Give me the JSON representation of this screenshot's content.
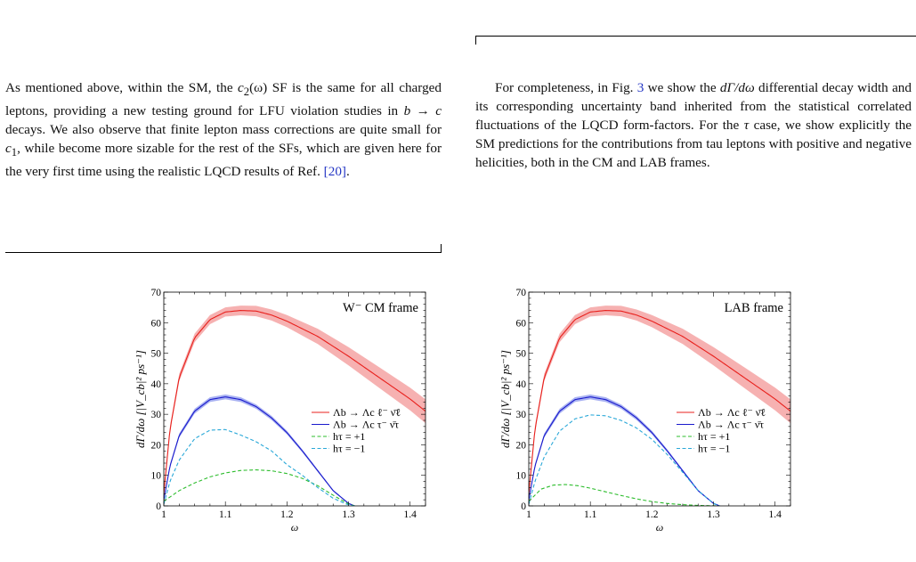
{
  "left_column": {
    "paragraph_parts": [
      "As mentioned above, within the SM, the ",
      "c",
      "2",
      "(ω) SF is the same for all charged leptons, providing a new testing ground for LFU violation studies in ",
      "b → c",
      " decays. We also observe that finite lepton mass corrections are quite small for ",
      "c",
      "1",
      ", while become more sizable for the rest of the SFs, which are given here for the very first time using the realistic LQCD results of Ref. ",
      "[20]",
      "."
    ]
  },
  "right_column": {
    "paragraph_parts": [
      "For completeness, in Fig. ",
      "3",
      " we show the ",
      "dΓ/dω",
      " differential decay width and its corresponding uncertainty band inherited from the statistical correlated fluctuations of the LQCD form-factors. For the ",
      "τ",
      " case, we show explicitly the SM predictions for the contributions from tau leptons with positive and negative helicities, both in the CM and LAB frames."
    ]
  },
  "colors": {
    "electron": "#e8201c",
    "electron_band": "#f5a3a3",
    "tau": "#1a1acc",
    "tau_band": "#9aa4f0",
    "h_plus": "#2ebd2e",
    "h_minus": "#2aa8d8",
    "link": "#2436c4"
  },
  "chart_data": [
    {
      "type": "line",
      "title": "",
      "frame_label": "W⁻ CM frame",
      "xlabel": "ω",
      "ylabel": "dΓ/dω [|V_cb|² ps⁻¹]",
      "xlim": [
        1.0,
        1.425
      ],
      "ylim": [
        0,
        70
      ],
      "xticks": [
        "1",
        "1.1",
        "1.2",
        "1.3",
        "1.4"
      ],
      "yticks": [
        "0",
        "10",
        "20",
        "30",
        "40",
        "50",
        "60",
        "70"
      ],
      "legend": [
        "Λb → Λc ℓ⁻ ν̄ℓ",
        "Λb → Λc τ⁻ ν̄τ",
        "hτ = +1",
        "hτ = −1"
      ],
      "legend_position": "center-right",
      "series": [
        {
          "name": "Λb → Λc ℓ⁻ ν̄ℓ",
          "style": "solid",
          "band": true,
          "x": [
            1.0,
            1.01,
            1.025,
            1.05,
            1.075,
            1.1,
            1.125,
            1.15,
            1.175,
            1.2,
            1.25,
            1.3,
            1.35,
            1.4,
            1.425
          ],
          "y": [
            4,
            25,
            42,
            55,
            61,
            63.5,
            64,
            63.8,
            62.5,
            60.5,
            55.5,
            49,
            42,
            35,
            31
          ],
          "band_halfwidth": [
            0.5,
            1,
            1.2,
            1.4,
            1.5,
            1.5,
            1.6,
            1.7,
            1.8,
            2,
            2.5,
            3,
            3.4,
            3.7,
            3.9
          ]
        },
        {
          "name": "Λb → Λc τ⁻ ν̄τ",
          "style": "solid",
          "band": true,
          "x": [
            1.0,
            1.01,
            1.025,
            1.05,
            1.075,
            1.1,
            1.125,
            1.15,
            1.175,
            1.2,
            1.225,
            1.25,
            1.275,
            1.3,
            1.31
          ],
          "y": [
            2,
            13,
            23,
            31,
            34.8,
            35.7,
            34.8,
            32.5,
            28.8,
            24,
            18,
            11.5,
            5,
            0.8,
            0
          ],
          "band_halfwidth": [
            0.3,
            0.6,
            0.7,
            0.8,
            0.8,
            0.8,
            0.8,
            0.7,
            0.7,
            0.6,
            0.5,
            0.4,
            0.3,
            0.2,
            0.1
          ]
        },
        {
          "name": "hτ = +1",
          "style": "dashed",
          "x": [
            1.0,
            1.025,
            1.05,
            1.075,
            1.1,
            1.125,
            1.15,
            1.175,
            1.2,
            1.225,
            1.25,
            1.275,
            1.3,
            1.31
          ],
          "y": [
            1.5,
            5,
            7.5,
            9.5,
            10.8,
            11.6,
            11.8,
            11.5,
            10.6,
            9,
            6.6,
            3.5,
            0.6,
            0
          ]
        },
        {
          "name": "hτ = −1",
          "style": "dashed",
          "x": [
            1.0,
            1.01,
            1.025,
            1.05,
            1.075,
            1.1,
            1.125,
            1.15,
            1.175,
            1.2,
            1.225,
            1.25,
            1.275,
            1.3,
            1.31
          ],
          "y": [
            0.5,
            8,
            15,
            22,
            24.8,
            25,
            23.2,
            21,
            18,
            13.5,
            10,
            6,
            2.5,
            0.3,
            0
          ]
        }
      ]
    },
    {
      "type": "line",
      "title": "",
      "frame_label": "LAB frame",
      "xlabel": "ω",
      "ylabel": "dΓ/dω [|V_cb|² ps⁻¹]",
      "xlim": [
        1.0,
        1.425
      ],
      "ylim": [
        0,
        70
      ],
      "xticks": [
        "1",
        "1.1",
        "1.2",
        "1.3",
        "1.4"
      ],
      "yticks": [
        "0",
        "10",
        "20",
        "30",
        "40",
        "50",
        "60",
        "70"
      ],
      "legend": [
        "Λb → Λc ℓ⁻ ν̄ℓ",
        "Λb → Λc τ⁻ ν̄τ",
        "hτ = +1",
        "hτ = −1"
      ],
      "legend_position": "center-right",
      "series": [
        {
          "name": "Λb → Λc ℓ⁻ ν̄ℓ",
          "style": "solid",
          "band": true,
          "x": [
            1.0,
            1.01,
            1.025,
            1.05,
            1.075,
            1.1,
            1.125,
            1.15,
            1.175,
            1.2,
            1.25,
            1.3,
            1.35,
            1.4,
            1.425
          ],
          "y": [
            4,
            25,
            42,
            55,
            61,
            63.5,
            64,
            63.8,
            62.5,
            60.5,
            55.5,
            49,
            42,
            35,
            31
          ],
          "band_halfwidth": [
            0.5,
            1,
            1.2,
            1.4,
            1.5,
            1.5,
            1.6,
            1.7,
            1.8,
            2,
            2.5,
            3,
            3.4,
            3.7,
            3.9
          ]
        },
        {
          "name": "Λb → Λc τ⁻ ν̄τ",
          "style": "solid",
          "band": true,
          "x": [
            1.0,
            1.01,
            1.025,
            1.05,
            1.075,
            1.1,
            1.125,
            1.15,
            1.175,
            1.2,
            1.225,
            1.25,
            1.275,
            1.3,
            1.31
          ],
          "y": [
            2,
            13,
            23,
            31,
            34.8,
            35.7,
            34.8,
            32.5,
            28.8,
            24,
            18,
            11.5,
            5,
            0.8,
            0
          ],
          "band_halfwidth": [
            0.3,
            0.6,
            0.7,
            0.8,
            0.8,
            0.8,
            0.8,
            0.7,
            0.7,
            0.6,
            0.5,
            0.4,
            0.3,
            0.2,
            0.1
          ]
        },
        {
          "name": "hτ = +1",
          "style": "dashed",
          "x": [
            1.0,
            1.02,
            1.04,
            1.06,
            1.08,
            1.1,
            1.125,
            1.15,
            1.175,
            1.2,
            1.225,
            1.25,
            1.275,
            1.3,
            1.31
          ],
          "y": [
            1.5,
            5.5,
            6.8,
            7,
            6.6,
            5.8,
            4.6,
            3.4,
            2.3,
            1.4,
            0.8,
            0.4,
            0.15,
            0.03,
            0
          ]
        },
        {
          "name": "hτ = −1",
          "style": "dashed",
          "x": [
            1.0,
            1.01,
            1.025,
            1.05,
            1.075,
            1.1,
            1.125,
            1.15,
            1.175,
            1.2,
            1.225,
            1.25,
            1.275,
            1.3,
            1.31
          ],
          "y": [
            0.5,
            8,
            16,
            24.5,
            28.5,
            29.8,
            29.5,
            28,
            25.5,
            21.8,
            16.8,
            11,
            5,
            0.8,
            0
          ]
        }
      ]
    }
  ]
}
